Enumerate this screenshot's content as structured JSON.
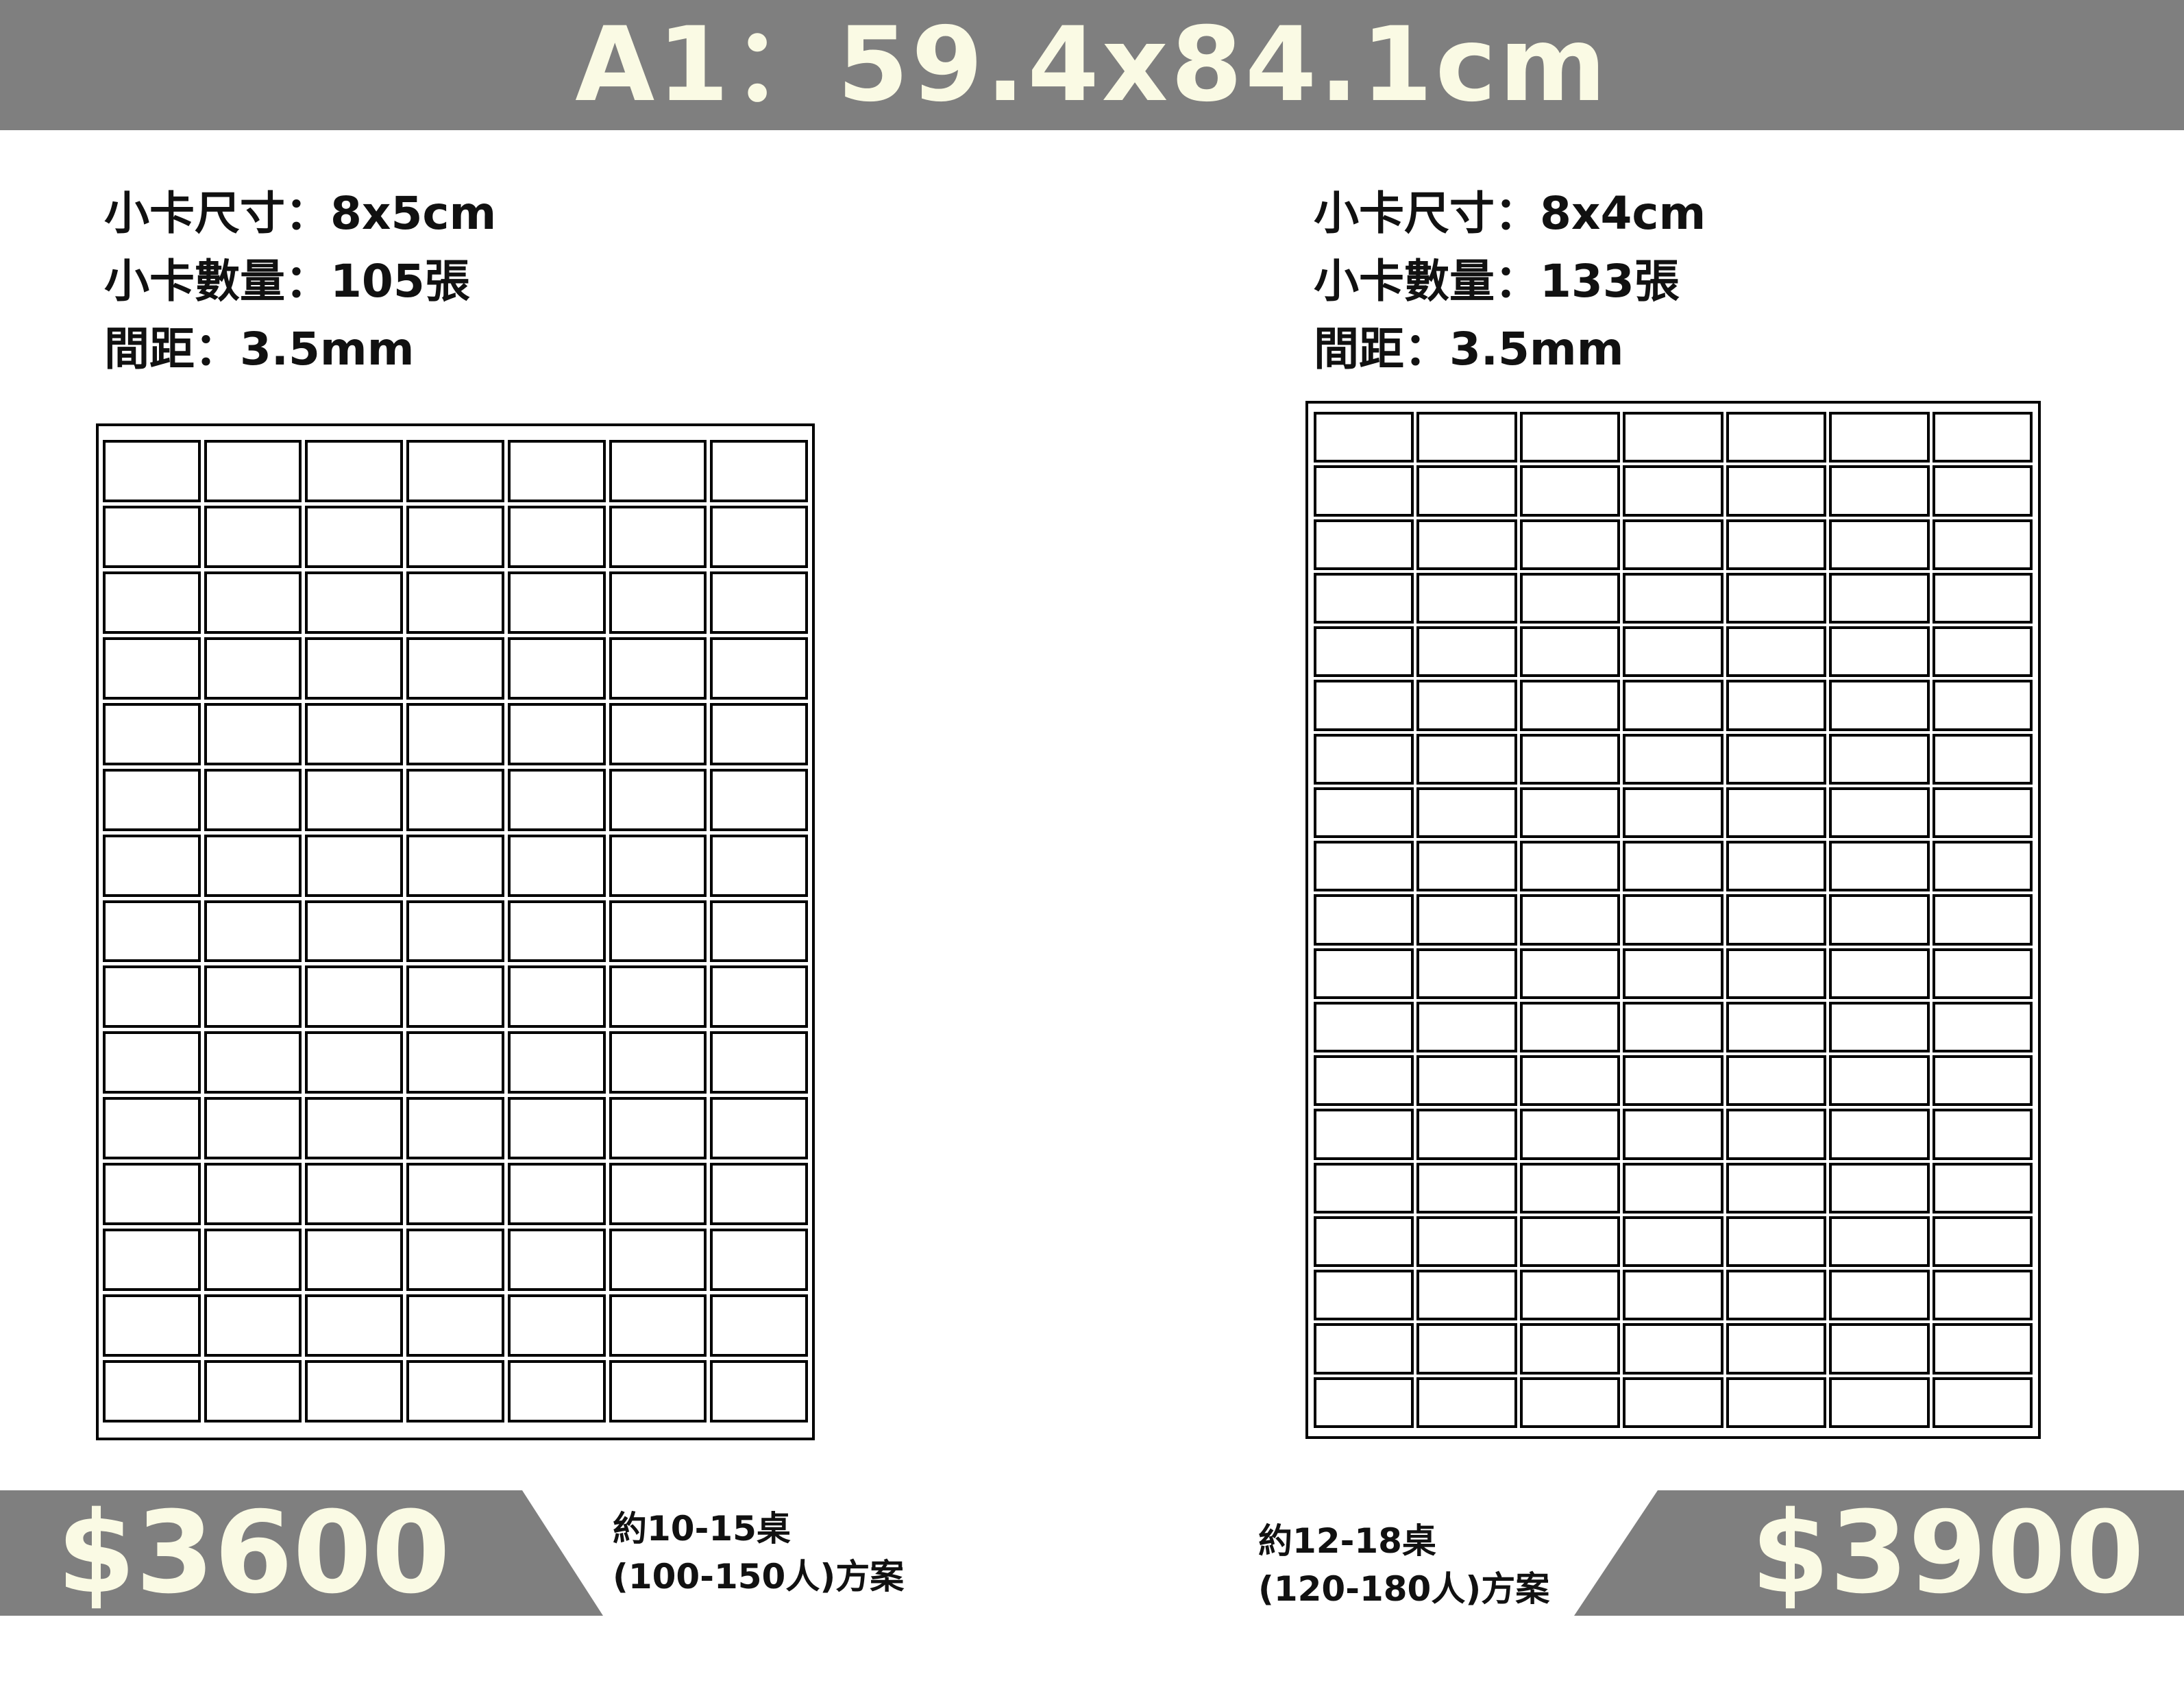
{
  "header": {
    "title": "A1：59.4x84.1cm"
  },
  "colors": {
    "banner_gray": "#7f7f7f",
    "title_cream": "#fafae4",
    "text": "#111111"
  },
  "layouts": [
    {
      "card_size": "小卡尺寸：8x5cm",
      "card_count": "小卡數量：105張",
      "spacing": "間距：3.5mm",
      "grid": {
        "columns": 7,
        "rows": 15
      },
      "price": "$3600",
      "tables": "約10-15桌",
      "people": "(100-150人)方案"
    },
    {
      "card_size": "小卡尺寸：8x4cm",
      "card_count": "小卡數量：133張",
      "spacing": "間距：3.5mm",
      "grid": {
        "columns": 7,
        "rows": 19
      },
      "price": "$3900",
      "tables": "約12-18桌",
      "people": "(120-180人)方案"
    }
  ]
}
